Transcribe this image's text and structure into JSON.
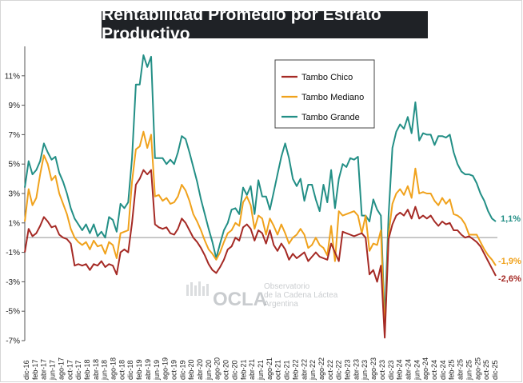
{
  "title": "Rentabilidad Promedio por Estrato Productivo",
  "watermark": {
    "brand": "OCLA",
    "line1": "Observatorio",
    "line2": "de la Cadena Láctea",
    "line3": "Argentina"
  },
  "end_labels": {
    "grande": "1,1%",
    "mediano": "-1,9%",
    "chico": "-2,6%"
  },
  "colors": {
    "chico": "#a52a25",
    "mediano": "#f0a21c",
    "grande": "#238f86",
    "zero_line": "#bcbcbc"
  },
  "chart_data": {
    "type": "line",
    "title": "Rentabilidad Promedio por Estrato Productivo",
    "xlabel": "",
    "ylabel": "",
    "ylim": [
      -7,
      13
    ],
    "yticks": [
      -7,
      -5,
      -3,
      -1,
      1,
      3,
      5,
      7,
      9,
      11
    ],
    "ytick_labels": [
      "-7%",
      "-5%",
      "-3%",
      "-1%",
      "1%",
      "3%",
      "5%",
      "7%",
      "9%",
      "11%"
    ],
    "x_start": "dic-16",
    "x_end": "dic-25",
    "xtick_labels": [
      "dic-16",
      "feb-17",
      "abr-17",
      "jun-17",
      "ago-17",
      "oct-17",
      "dic-17",
      "feb-18",
      "abr-18",
      "jun-18",
      "ago-18",
      "oct-18",
      "dic-18",
      "feb-19",
      "abr-19",
      "jun-19",
      "ago-19",
      "oct-19",
      "dic-19",
      "feb-20",
      "abr-20",
      "jun-20",
      "ago-20",
      "oct-20",
      "dic-20",
      "feb-21",
      "abr-21",
      "jun-21",
      "ago-21",
      "oct-21",
      "dic-21",
      "feb-22",
      "abr-22",
      "jun-22",
      "ago-22",
      "oct-22",
      "dic-22",
      "feb-23",
      "abr-23",
      "jun-23",
      "ago-23",
      "oct-23",
      "dic-23",
      "feb-24",
      "abr-24",
      "jun-24",
      "ago-24",
      "oct-24",
      "dic-24",
      "feb-25",
      "abr-25",
      "jun-25",
      "ago-25",
      "oct-25",
      "dic-25"
    ],
    "legend": {
      "placement": "top-center",
      "entries": [
        "Tambo Chico",
        "Tambo Mediano",
        "Tambo Grande"
      ]
    },
    "grid": false,
    "series": [
      {
        "name": "Tambo Chico",
        "color": "#a52a25",
        "values": [
          -1.0,
          0.6,
          0.1,
          0.3,
          0.8,
          1.4,
          1.1,
          0.7,
          0.8,
          0.2,
          0.0,
          -0.1,
          -0.4,
          -1.9,
          -1.8,
          -1.9,
          -1.8,
          -2.2,
          -1.8,
          -1.9,
          -1.6,
          -2.0,
          -1.8,
          -1.9,
          -2.5,
          -1.0,
          -0.8,
          -1.0,
          1.0,
          3.6,
          4.0,
          4.6,
          4.3,
          4.6,
          0.9,
          0.7,
          0.6,
          0.7,
          0.3,
          0.2,
          0.6,
          1.3,
          1.0,
          0.5,
          0.0,
          -0.3,
          -0.7,
          -1.2,
          -1.8,
          -2.2,
          -2.4,
          -2.0,
          -1.5,
          -0.8,
          -0.6,
          0.0,
          -0.2,
          0.7,
          0.9,
          0.6,
          -0.2,
          0.5,
          0.3,
          -0.4,
          0.5,
          -0.5,
          -0.9,
          -0.4,
          -0.8,
          -1.5,
          -1.1,
          -1.4,
          -1.2,
          -1.0,
          -1.6,
          -1.3,
          -1.0,
          -1.3,
          -1.4,
          -1.5,
          -0.4,
          -1.0,
          -1.6,
          0.4,
          0.3,
          0.2,
          0.1,
          0.2,
          0.3,
          0.0,
          -2.5,
          -2.2,
          -3.0,
          -1.9,
          -6.8,
          -0.1,
          0.9,
          1.5,
          1.7,
          1.5,
          1.9,
          1.3,
          2.1,
          1.3,
          1.5,
          1.3,
          1.5,
          1.1,
          0.8,
          1.1,
          0.9,
          1.0,
          0.5,
          0.5,
          0.2,
          0.0,
          0.1,
          -0.1,
          -0.3,
          -0.6,
          -1.1,
          -1.6,
          -2.1,
          -2.6
        ]
      },
      {
        "name": "Tambo Mediano",
        "color": "#f0a21c",
        "values": [
          1.1,
          3.3,
          2.2,
          2.7,
          4.3,
          5.6,
          5.0,
          3.9,
          4.2,
          3.0,
          2.3,
          1.6,
          0.6,
          0.0,
          -0.3,
          -0.5,
          -0.3,
          -0.8,
          -0.2,
          -0.6,
          -0.5,
          -1.1,
          -0.3,
          -0.5,
          -1.4,
          0.3,
          0.4,
          0.5,
          3.8,
          6.0,
          6.2,
          7.2,
          6.1,
          7.0,
          2.8,
          2.9,
          2.5,
          2.7,
          2.3,
          2.4,
          2.8,
          3.6,
          3.2,
          2.5,
          1.6,
          1.1,
          0.5,
          -0.2,
          -0.8,
          -1.1,
          -1.5,
          -1.0,
          -0.3,
          0.3,
          0.5,
          1.0,
          0.8,
          2.4,
          2.8,
          2.2,
          0.6,
          1.5,
          1.3,
          0.2,
          1.3,
          0.8,
          0.2,
          0.9,
          0.3,
          -0.4,
          0.0,
          0.2,
          0.6,
          0.2,
          -0.7,
          -0.5,
          0.0,
          -0.5,
          -0.7,
          -1.2,
          0.8,
          -1.6,
          1.8,
          1.5,
          1.6,
          1.7,
          1.8,
          1.5,
          0.3,
          1.5,
          -0.9,
          -0.4,
          -0.5,
          0.5,
          -6.4,
          0.2,
          2.3,
          3.0,
          3.3,
          2.9,
          3.5,
          2.7,
          4.7,
          3.0,
          3.1,
          3.0,
          3.0,
          2.5,
          2.2,
          2.7,
          2.3,
          2.6,
          1.6,
          1.5,
          1.3,
          0.9,
          0.2,
          0.2,
          0.2,
          -0.3,
          -0.8,
          -1.2,
          -1.5,
          -1.9
        ]
      },
      {
        "name": "Tambo Grande",
        "color": "#238f86",
        "values": [
          3.4,
          5.2,
          4.3,
          4.6,
          5.2,
          6.4,
          5.8,
          5.3,
          5.5,
          4.4,
          3.8,
          3.0,
          2.0,
          1.3,
          0.9,
          0.5,
          0.9,
          0.3,
          0.9,
          0.1,
          0.4,
          0.0,
          1.4,
          1.2,
          0.4,
          2.3,
          2.0,
          2.4,
          5.4,
          10.4,
          10.4,
          12.4,
          11.6,
          12.3,
          5.4,
          5.4,
          5.4,
          5.0,
          5.3,
          5.0,
          5.8,
          6.9,
          6.7,
          5.8,
          4.8,
          3.8,
          2.6,
          1.6,
          0.6,
          -0.3,
          -1.4,
          -0.4,
          0.5,
          1.0,
          1.9,
          2.0,
          1.6,
          3.4,
          2.9,
          3.5,
          1.6,
          3.9,
          2.8,
          2.8,
          1.9,
          3.1,
          4.3,
          5.5,
          6.4,
          5.4,
          4.0,
          3.5,
          4.0,
          2.5,
          3.6,
          3.6,
          2.6,
          1.8,
          3.6,
          2.4,
          4.6,
          2.0,
          4.0,
          5.0,
          4.8,
          5.4,
          5.3,
          5.5,
          1.5,
          1.5,
          1.1,
          2.6,
          1.9,
          1.5,
          -5.7,
          1.5,
          6.1,
          7.2,
          7.7,
          7.4,
          8.2,
          7.1,
          9.2,
          6.6,
          7.1,
          7.0,
          7.0,
          6.3,
          6.9,
          6.9,
          6.8,
          7.0,
          5.8,
          5.0,
          4.5,
          4.3,
          4.3,
          4.2,
          3.7,
          3.0,
          2.5,
          1.8,
          1.3,
          1.1
        ]
      }
    ]
  }
}
